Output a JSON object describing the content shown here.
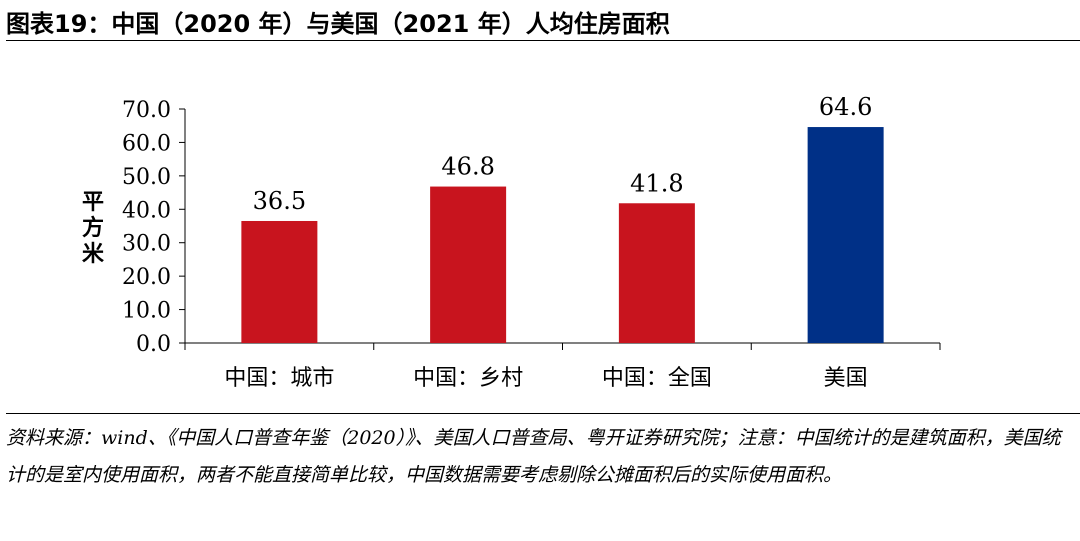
{
  "title": "图表19：中国（2020 年）与美国（2021 年）人均住房面积",
  "source_note": "资料来源：wind、《中国人口普查年鉴（2020）》、美国人口普查局、粤开证券研究院；注意：中国统计的是建筑面积，美国统计的是室内使用面积，两者不能直接简单比较，中国数据需要考虑剔除公摊面积后的实际使用面积。",
  "chart_data": {
    "type": "bar",
    "categories": [
      "中国：城市",
      "中国：乡村",
      "中国：全国",
      "美国"
    ],
    "values": [
      36.5,
      46.8,
      41.8,
      64.6
    ],
    "data_labels": [
      "36.5",
      "46.8",
      "41.8",
      "64.6"
    ],
    "ylabel": "平方米",
    "xlabel": "",
    "ylim": [
      0,
      70
    ],
    "yticks": [
      "0.0",
      "10.0",
      "20.0",
      "30.0",
      "40.0",
      "50.0",
      "60.0",
      "70.0"
    ],
    "colors": [
      "#C8141E",
      "#C8141E",
      "#C8141E",
      "#003087"
    ],
    "grid": false,
    "legend": "none"
  }
}
